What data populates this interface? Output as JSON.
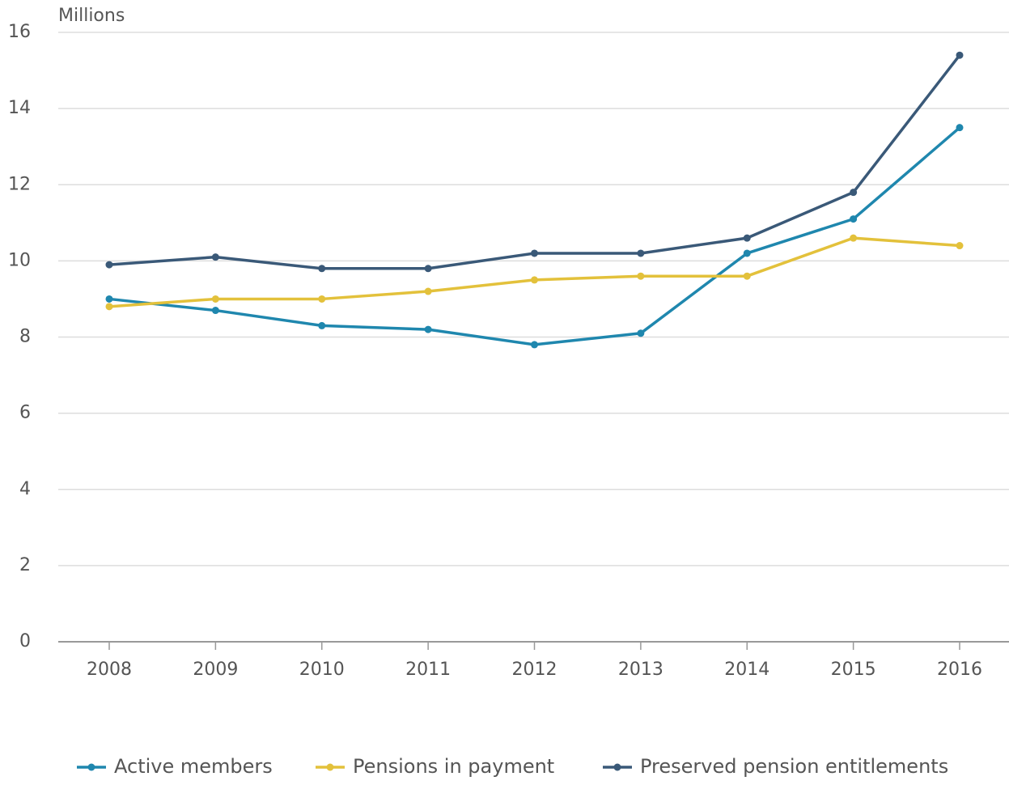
{
  "chart_data": {
    "type": "line",
    "y_label": "Millions",
    "categories": [
      "2008",
      "2009",
      "2010",
      "2011",
      "2012",
      "2013",
      "2014",
      "2015",
      "2016"
    ],
    "series": [
      {
        "name": "Active members",
        "color": "#1f87ae",
        "values": [
          9.0,
          8.7,
          8.3,
          8.2,
          7.8,
          8.1,
          10.2,
          11.1,
          13.5
        ]
      },
      {
        "name": "Pensions in payment",
        "color": "#e3c13b",
        "values": [
          8.8,
          9.0,
          9.0,
          9.2,
          9.5,
          9.6,
          9.6,
          10.6,
          10.4
        ]
      },
      {
        "name": "Preserved pension entitlements",
        "color": "#3a5978",
        "values": [
          9.9,
          10.1,
          9.8,
          9.8,
          10.2,
          10.2,
          10.6,
          11.8,
          15.4
        ]
      }
    ],
    "ylim": [
      0,
      16
    ],
    "yticks": [
      0,
      2,
      4,
      6,
      8,
      10,
      12,
      14,
      16
    ],
    "grid": true,
    "legend": "bottom"
  }
}
